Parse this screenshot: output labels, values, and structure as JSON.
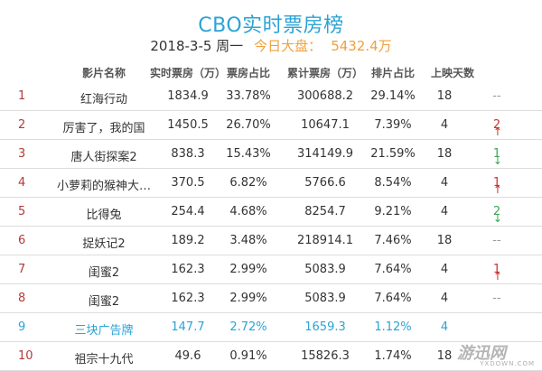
{
  "title": "CBO实时票房榜",
  "subtitle": {
    "date": "2018-3-5 周一",
    "daily_label": "今日大盘：",
    "daily_value": "5432.4万"
  },
  "columns": {
    "name": "影片名称",
    "realtime": "实时票房（万）",
    "ratio": "票房占比",
    "cumulative": "累计票房（万）",
    "screen_ratio": "排片占比",
    "days": "上映天数"
  },
  "rows": [
    {
      "rank": "1",
      "name": "红海行动",
      "realtime": "1834.9",
      "ratio": "33.78%",
      "cumulative": "300688.2",
      "screen_ratio": "29.14%",
      "days": "18",
      "trend": "none",
      "trend_text": "--"
    },
    {
      "rank": "2",
      "name": "厉害了，我的国",
      "realtime": "1450.5",
      "ratio": "26.70%",
      "cumulative": "10647.1",
      "screen_ratio": "7.39%",
      "days": "4",
      "trend": "up",
      "trend_text": "2"
    },
    {
      "rank": "3",
      "name": "唐人街探案2",
      "realtime": "838.3",
      "ratio": "15.43%",
      "cumulative": "314149.9",
      "screen_ratio": "21.59%",
      "days": "18",
      "trend": "down",
      "trend_text": "1"
    },
    {
      "rank": "4",
      "name": "小萝莉的猴神大…",
      "realtime": "370.5",
      "ratio": "6.82%",
      "cumulative": "5766.6",
      "screen_ratio": "8.54%",
      "days": "4",
      "trend": "up",
      "trend_text": "1"
    },
    {
      "rank": "5",
      "name": "比得兔",
      "realtime": "254.4",
      "ratio": "4.68%",
      "cumulative": "8254.7",
      "screen_ratio": "9.21%",
      "days": "4",
      "trend": "down",
      "trend_text": "2"
    },
    {
      "rank": "6",
      "name": "捉妖记2",
      "realtime": "189.2",
      "ratio": "3.48%",
      "cumulative": "218914.1",
      "screen_ratio": "7.46%",
      "days": "18",
      "trend": "none",
      "trend_text": "--"
    },
    {
      "rank": "7",
      "name": "闺蜜2",
      "realtime": "162.3",
      "ratio": "2.99%",
      "cumulative": "5083.9",
      "screen_ratio": "7.64%",
      "days": "4",
      "trend": "up",
      "trend_text": "1"
    },
    {
      "rank": "8",
      "name": "闺蜜2",
      "realtime": "162.3",
      "ratio": "2.99%",
      "cumulative": "5083.9",
      "screen_ratio": "7.64%",
      "days": "4",
      "trend": "none",
      "trend_text": "--"
    },
    {
      "rank": "9",
      "name": "三块广告牌",
      "realtime": "147.7",
      "ratio": "2.72%",
      "cumulative": "1659.3",
      "screen_ratio": "1.12%",
      "days": "4",
      "trend": "none",
      "trend_text": "",
      "highlight": true
    },
    {
      "rank": "10",
      "name": "祖宗十九代",
      "realtime": "49.6",
      "ratio": "0.91%",
      "cumulative": "15826.3",
      "screen_ratio": "1.74%",
      "days": "18",
      "trend": "none",
      "trend_text": ""
    }
  ],
  "watermark": {
    "text": "游迅网",
    "url": "YXDOWN.COM"
  },
  "colors": {
    "title": "#2aa3d6",
    "accent": "#f0a13c",
    "up": "#c8332e",
    "down": "#3aa655",
    "highlight": "#2aa3d6"
  }
}
